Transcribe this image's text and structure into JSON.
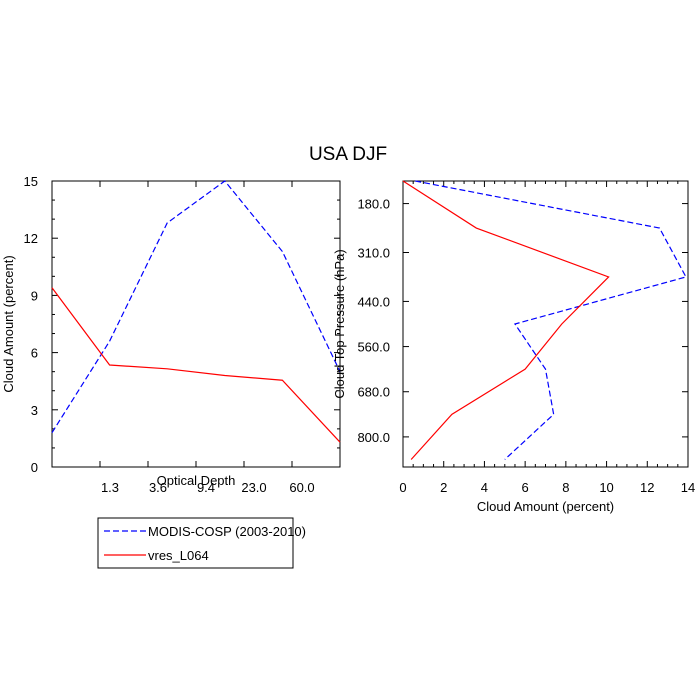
{
  "title": "USA DJF",
  "legend": {
    "placement": "bottom-left",
    "entries": [
      {
        "label": "MODIS-COSP (2003-2010)",
        "color": "#0000ff",
        "dash": true
      },
      {
        "label": "vres_L064",
        "color": "#ff0000",
        "dash": false
      }
    ]
  },
  "chart_data": [
    {
      "type": "line",
      "xlabel": "Optical Depth",
      "ylabel": "Cloud Amount (percent)",
      "x_tick_labels": [
        "1.3",
        "3.6",
        "9.4",
        "23.0",
        "60.0"
      ],
      "x_positions": [
        0,
        1,
        2,
        3,
        4,
        5,
        6
      ],
      "ylim": [
        0,
        15
      ],
      "y_ticks": [
        0,
        3,
        6,
        9,
        12,
        15
      ],
      "series": [
        {
          "name": "MODIS-COSP (2003-2010)",
          "color": "#0000ff",
          "dash": true,
          "values": [
            1.8,
            6.6,
            12.8,
            15.0,
            11.3,
            5.0
          ]
        },
        {
          "name": "vres_L064",
          "color": "#ff0000",
          "dash": false,
          "values": [
            9.4,
            5.35,
            5.15,
            4.8,
            4.55,
            1.3
          ]
        }
      ]
    },
    {
      "type": "line",
      "xlabel": "Cloud Amount (percent)",
      "ylabel": "Cloud Top Pressure (hPa)",
      "xlim": [
        0,
        14
      ],
      "x_ticks": [
        0,
        2,
        4,
        6,
        8,
        10,
        12,
        14
      ],
      "ylim": [
        120,
        880
      ],
      "y_tick_labels": [
        "180.0",
        "310.0",
        "440.0",
        "560.0",
        "680.0",
        "800.0"
      ],
      "y_ticks": [
        180,
        310,
        440,
        560,
        680,
        800
      ],
      "pressure_levels": [
        120,
        245,
        375,
        500,
        620,
        740,
        860
      ],
      "series": [
        {
          "name": "MODIS-COSP (2003-2010)",
          "color": "#0000ff",
          "dash": true,
          "values": [
            0.6,
            12.6,
            13.9,
            5.5,
            7.0,
            7.4,
            5.0
          ]
        },
        {
          "name": "vres_L064",
          "color": "#ff0000",
          "dash": false,
          "values": [
            0.0,
            3.6,
            10.1,
            7.8,
            6.0,
            2.4,
            0.4
          ]
        }
      ]
    }
  ]
}
